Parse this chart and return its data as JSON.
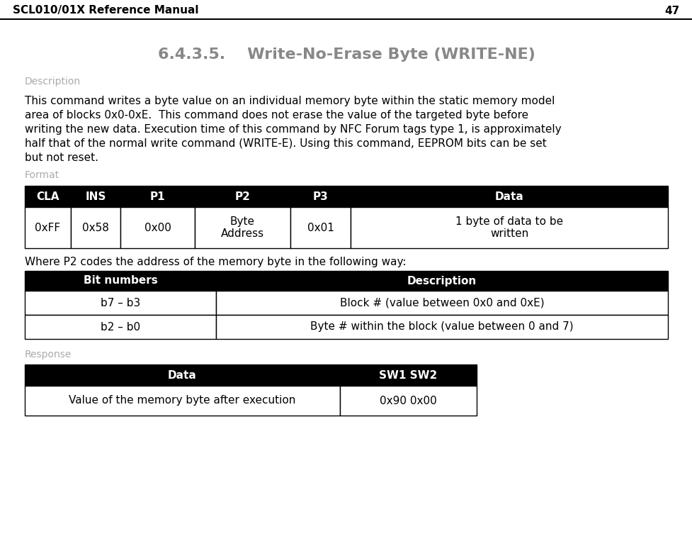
{
  "header_title": "SCL010/01X Reference Manual",
  "header_page": "47",
  "section_title": "6.4.3.5.    Write-No-Erase Byte (WRITE-NE)",
  "desc_label": "Description",
  "description": "This command writes a byte value on an individual memory byte within the static memory model\narea of blocks 0x0-0xE.  This command does not erase the value of the targeted byte before\nwriting the new data. Execution time of this command by NFC Forum tags type 1, is approximately\nhalf that of the normal write command (WRITE-E). Using this command, EEPROM bits can be set\nbut not reset.",
  "format_label": "Format",
  "format_headers": [
    "CLA",
    "INS",
    "P1",
    "P2",
    "P3",
    "Data"
  ],
  "format_row": [
    "0xFF",
    "0x58",
    "0x00",
    "Byte\nAddress",
    "0x01",
    "1 byte of data to be\nwritten"
  ],
  "p2_note": "Where P2 codes the address of the memory byte in the following way:",
  "bits_headers": [
    "Bit numbers",
    "Description"
  ],
  "bits_rows": [
    [
      "b7 – b3",
      "Block # (value between 0x0 and 0xE)"
    ],
    [
      "b2 – b0",
      "Byte # within the block (value between 0 and 7)"
    ]
  ],
  "response_label": "Response",
  "response_headers": [
    "Data",
    "SW1 SW2"
  ],
  "response_rows": [
    [
      "Value of the memory byte after execution",
      "0x90 0x00"
    ]
  ],
  "bg_color": "#ffffff",
  "header_bg": "#000000",
  "header_fg": "#ffffff",
  "cell_bg": "#ffffff",
  "cell_fg": "#000000",
  "label_color": "#aaaaaa",
  "title_color": "#888888",
  "border_color": "#000000",
  "header_title_color": "#000000"
}
